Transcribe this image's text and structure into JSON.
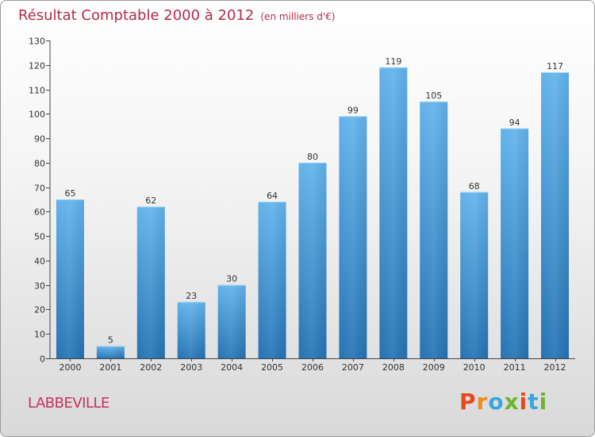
{
  "header": {
    "title": "Résultat Comptable 2000 à 2012",
    "subtitle": "(en milliers d'€)"
  },
  "footer": {
    "commune": "LABBEVILLE",
    "logo_text": "Proxiti"
  },
  "colors": {
    "title": "#b22b4a",
    "bar_light": "#5fb0ea",
    "bar_dark": "#2778b9",
    "logo": [
      "#e8481e",
      "#f08c1e",
      "#3aa6dc",
      "#6cb52d",
      "#e8481e",
      "#3aa6dc",
      "#6cb52d"
    ]
  },
  "chart_data": {
    "type": "bar",
    "title": "Résultat Comptable 2000 à 2012",
    "subtitle": "(en milliers d'€)",
    "xlabel": "",
    "ylabel": "",
    "categories": [
      "2000",
      "2001",
      "2002",
      "2003",
      "2004",
      "2005",
      "2006",
      "2007",
      "2008",
      "2009",
      "2010",
      "2011",
      "2012"
    ],
    "values": [
      65,
      5,
      62,
      23,
      30,
      64,
      80,
      99,
      119,
      105,
      68,
      94,
      117
    ],
    "ylim": [
      0,
      130
    ],
    "yticks": [
      0,
      10,
      20,
      30,
      40,
      50,
      60,
      70,
      80,
      90,
      100,
      110,
      120,
      130
    ],
    "grid": false,
    "data_labels": true
  }
}
